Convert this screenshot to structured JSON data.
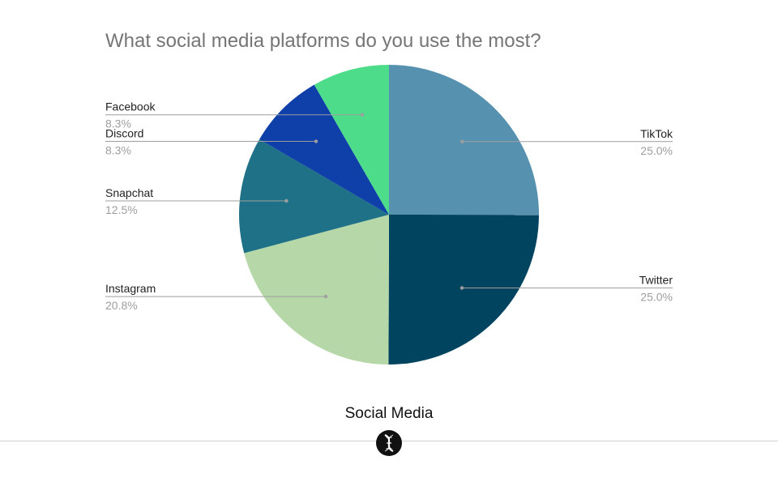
{
  "chart_data": {
    "type": "pie",
    "title": "What social media platforms do you use the most?",
    "slices": [
      {
        "label": "TikTok",
        "pct_label": "25.0%",
        "value": 25.0,
        "color": "#5791b0"
      },
      {
        "label": "Twitter",
        "pct_label": "25.0%",
        "value": 25.0,
        "color": "#00445f"
      },
      {
        "label": "Instagram",
        "pct_label": "20.8%",
        "value": 20.8,
        "color": "#b6d7a8"
      },
      {
        "label": "Snapchat",
        "pct_label": "12.5%",
        "value": 12.5,
        "color": "#1e7186"
      },
      {
        "label": "Discord",
        "pct_label": "8.3%",
        "value": 8.3,
        "color": "#0f3fa8"
      },
      {
        "label": "Facebook",
        "pct_label": "8.3%",
        "value": 8.3,
        "color": "#4ddc89"
      }
    ],
    "legend": "none"
  },
  "caption": "Social Media",
  "icons": {
    "logo": "dna-logo-icon"
  }
}
